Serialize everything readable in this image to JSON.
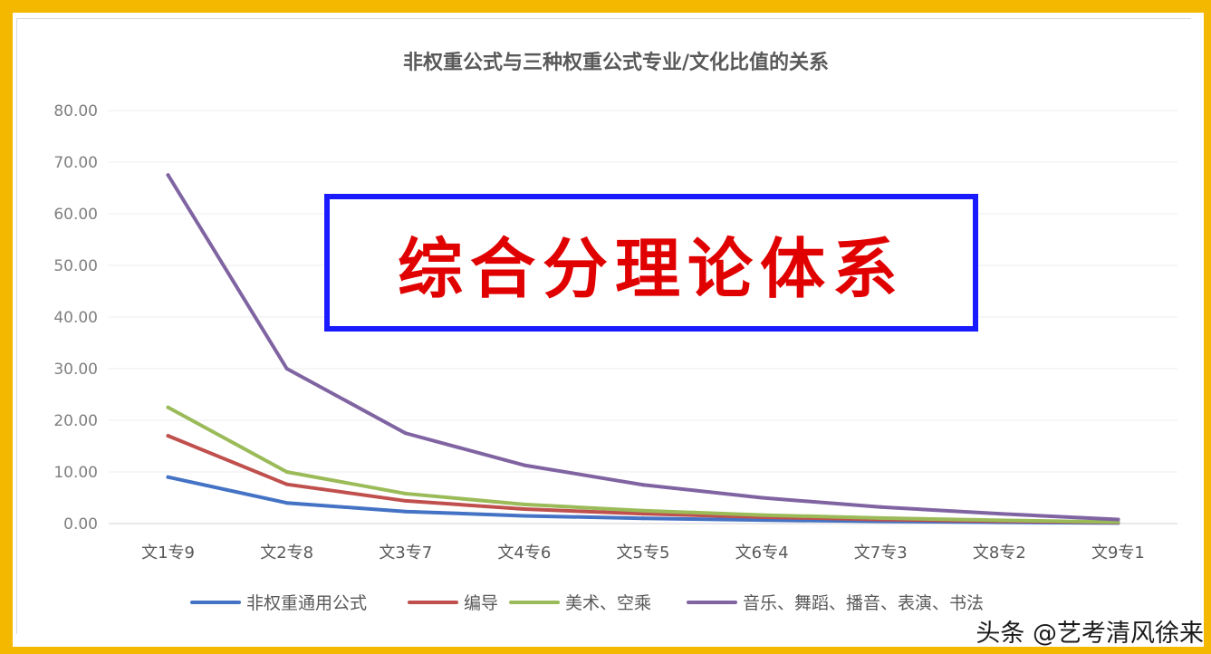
{
  "chart_data": {
    "type": "line",
    "title": "非权重公式与三种权重公式专业/文化比值的关系",
    "categories": [
      "文1专9",
      "文2专8",
      "文3专7",
      "文4专6",
      "文5专5",
      "文6专4",
      "文7专3",
      "文8专2",
      "文9专1"
    ],
    "ylim": [
      0,
      80
    ],
    "yticks": [
      "0.00",
      "10.00",
      "20.00",
      "30.00",
      "40.00",
      "50.00",
      "60.00",
      "70.00",
      "80.00"
    ],
    "grid": true,
    "legend_position": "bottom",
    "series": [
      {
        "name": "非权重通用公式",
        "color": "#4472c4",
        "values": [
          9.0,
          4.0,
          2.33,
          1.5,
          1.0,
          0.67,
          0.43,
          0.25,
          0.11
        ]
      },
      {
        "name": "编导",
        "color": "#c0504d",
        "values": [
          17.0,
          7.6,
          4.4,
          2.8,
          1.9,
          1.25,
          0.8,
          0.47,
          0.21
        ]
      },
      {
        "name": "美术、空乘",
        "color": "#9bbb59",
        "values": [
          22.5,
          10.0,
          5.8,
          3.7,
          2.5,
          1.65,
          1.07,
          0.63,
          0.28
        ]
      },
      {
        "name": "音乐、舞蹈、播音、表演、书法",
        "color": "#8064a2",
        "values": [
          67.5,
          30.0,
          17.5,
          11.3,
          7.5,
          5.0,
          3.2,
          1.9,
          0.8
        ]
      }
    ]
  },
  "overlay": {
    "stamp_text": "综合分理论体系",
    "watermark": "头条 @艺考清风徐来"
  }
}
